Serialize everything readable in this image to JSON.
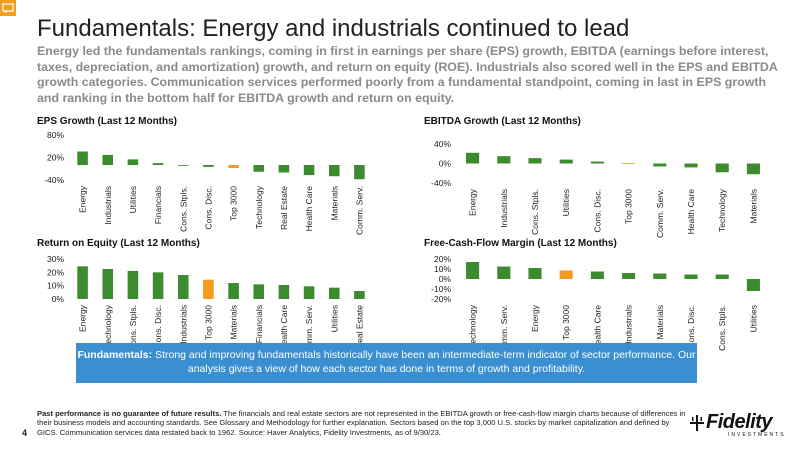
{
  "slide": {
    "title": "Fundamentals: Energy and industrials continued to lead",
    "subtitle": "Energy led the fundamentals rankings, coming in first in earnings per share (EPS) growth, EBITDA (earnings before interest, taxes, depreciation, and amortization) growth, and return on equity (ROE). Industrials also scored well in the EPS and EBITDA growth categories. Communication services performed poorly from a fundamental standpoint, coming in last in EPS growth and ranking in the bottom half for EBITDA growth and return on equity.",
    "page_number": "4",
    "callout": {
      "lead": "Fundamentals:",
      "text": " Strong and improving fundamentals historically have been an intermediate-term indicator of sector performance. Our analysis gives a view of how each sector has done in terms of growth and profitability."
    },
    "footer": {
      "bold": "Past performance is no guarantee of future results.",
      "text": " The financials and real estate sectors are not represented in the EBITDA growth or free-cash-flow margin charts because of differences in their business models and accounting standards. See Glossary and Methodology for further explanation. Sectors based on the top 3,000 U.S. stocks by market capitalization and defined by GICS. Communication services data restated back to 1962. Source: Haver Analytics, Fidelity Investments, as of 9/30/23."
    },
    "logo": {
      "word": "Fidelity",
      "sub": "INVESTMENTS"
    },
    "colors": {
      "bar": "#3d8b2e",
      "highlight": "#f39c1f",
      "callout": "#3a8fd0",
      "comment_icon": "#f0a020"
    }
  },
  "chart_data": [
    {
      "type": "bar",
      "title": "EPS Growth (Last 12 Months)",
      "categories": [
        "Energy",
        "Industrials",
        "Utilities",
        "Financials",
        "Cons. Stpls.",
        "Cons. Disc.",
        "Top 3000",
        "Technology",
        "Real Estate",
        "Health Care",
        "Materials",
        "Comm. Serv."
      ],
      "values": [
        36,
        27,
        15,
        5,
        -2,
        -5,
        -8,
        -18,
        -20,
        -27,
        -30,
        -38
      ],
      "highlight": "Top 3000",
      "yticks": [
        "80%",
        "20%",
        "-40%"
      ],
      "ytick_values": [
        80,
        20,
        -40
      ],
      "ylim": [
        -40,
        80
      ]
    },
    {
      "type": "bar",
      "title": "EBITDA Growth (Last 12 Months)",
      "categories": [
        "Energy",
        "Industrials",
        "Cons. Stpls.",
        "Utilities",
        "Cons. Disc.",
        "Top 3000",
        "Comm. Serv.",
        "Health Care",
        "Technology",
        "Materials"
      ],
      "values": [
        22,
        15,
        11,
        8,
        4,
        1,
        -6,
        -8,
        -18,
        -22
      ],
      "highlight": "Top 3000",
      "yticks": [
        "40%",
        "0%",
        "-40%"
      ],
      "ytick_values": [
        40,
        0,
        -40
      ],
      "ylim": [
        -40,
        40
      ]
    },
    {
      "type": "bar",
      "title": "Return on Equity (Last 12 Months)",
      "categories": [
        "Energy",
        "Technology",
        "Cons. Stpls.",
        "Cons. Disc.",
        "Industrials",
        "Top 3000",
        "Materials",
        "Financials",
        "Health Care",
        "Comm. Serv.",
        "Utilities",
        "Real Estate"
      ],
      "values": [
        24.5,
        22.5,
        21,
        20,
        18,
        14.5,
        12,
        11,
        10.5,
        9.5,
        8.5,
        6
      ],
      "highlight": "Top 3000",
      "yticks": [
        "30%",
        "20%",
        "10%",
        "0%"
      ],
      "ytick_values": [
        30,
        20,
        10,
        0
      ],
      "ylim": [
        0,
        30
      ]
    },
    {
      "type": "bar",
      "title": "Free-Cash-Flow Margin (Last 12 Months)",
      "categories": [
        "Technology",
        "Comm. Serv.",
        "Energy",
        "Top 3000",
        "Health Care",
        "Industrials",
        "Materials",
        "Cons. Disc.",
        "Cons. Stpls.",
        "Utilities"
      ],
      "values": [
        17,
        12.5,
        11,
        8.5,
        7.5,
        6,
        5.5,
        4.5,
        4.5,
        -12
      ],
      "highlight": "Top 3000",
      "yticks": [
        "20%",
        "10%",
        "0%",
        "-10%",
        "-20%"
      ],
      "ytick_values": [
        20,
        10,
        0,
        -10,
        -20
      ],
      "ylim": [
        -20,
        20
      ]
    }
  ]
}
